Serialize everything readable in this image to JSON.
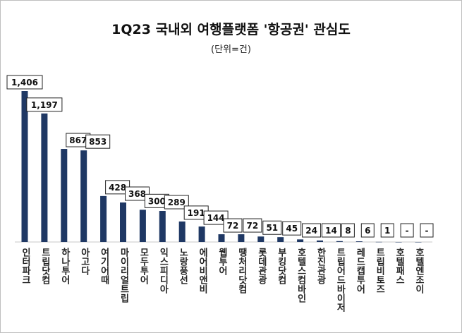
{
  "chart_data": {
    "type": "bar",
    "title": "1Q23 국내외 여행플랫폼 '항공권' 관심도",
    "subtitle": "(단위=건)",
    "xlabel": "",
    "ylabel": "",
    "categories": [
      "인터파크",
      "트립닷컴",
      "하나투어",
      "아고다",
      "여기어때",
      "마이리얼트립",
      "모두투어",
      "익스피디아",
      "노랑풍선",
      "에어비앤비",
      "웹투어",
      "땡처리닷컴",
      "롯데관광",
      "부킹닷컴",
      "호텔스컴바인",
      "한진관광",
      "트립어드바이저",
      "레드캡투어",
      "트립비토즈",
      "호텔패스",
      "호텔엔조이"
    ],
    "values": [
      1406,
      1197,
      867,
      853,
      428,
      368,
      300,
      289,
      191,
      144,
      72,
      72,
      51,
      45,
      24,
      14,
      8,
      6,
      1,
      0,
      0
    ],
    "value_labels": [
      "1,406",
      "1,197",
      "867",
      "853",
      "428",
      "368",
      "300",
      "289",
      "191",
      "144",
      "72",
      "72",
      "51",
      "45",
      "24",
      "14",
      "8",
      "6",
      "1",
      "-",
      "-"
    ],
    "ylim": [
      0,
      1406
    ],
    "grid": false,
    "bar_color": "#1f3864"
  }
}
